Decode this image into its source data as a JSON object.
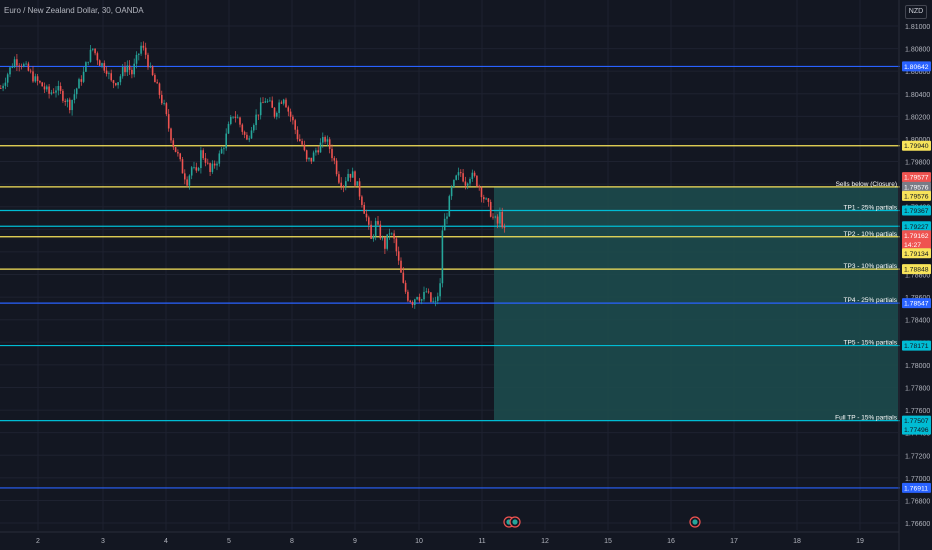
{
  "header": {
    "title": "Euro / New Zealand Dollar, 30, OANDA",
    "currency": "NZD"
  },
  "colors": {
    "background": "#131722",
    "up": "#26a69a",
    "down": "#ef5350",
    "blue_line": "#2962ff",
    "yellow_line": "#f7e35a",
    "cyan_line": "#00bcd4",
    "zone_fill": "#1d4a4d",
    "grid": "#1e2230"
  },
  "chart_data": {
    "type": "candlestick",
    "title": "Euro / New Zealand Dollar, 30, OANDA",
    "ylim": [
      1.7645,
      1.8123
    ],
    "y_ticks": [
      1.81,
      1.808,
      1.806,
      1.804,
      1.802,
      1.8,
      1.798,
      1.796,
      1.794,
      1.792,
      1.79,
      1.788,
      1.786,
      1.784,
      1.782,
      1.78,
      1.778,
      1.776,
      1.774,
      1.772,
      1.77,
      1.768,
      1.766
    ],
    "x_ticks": [
      "2",
      "3",
      "4",
      "5",
      "8",
      "9",
      "10",
      "11",
      "12",
      "15",
      "16",
      "17",
      "18",
      "19"
    ],
    "price_path": [
      [
        0,
        1.8045
      ],
      [
        3,
        1.8058
      ],
      [
        6,
        1.807
      ],
      [
        9,
        1.8067
      ],
      [
        12,
        1.806
      ],
      [
        15,
        1.8052
      ],
      [
        18,
        1.8047
      ],
      [
        21,
        1.804
      ],
      [
        24,
        1.8045
      ],
      [
        27,
        1.8038
      ],
      [
        30,
        1.803
      ],
      [
        33,
        1.8045
      ],
      [
        36,
        1.8058
      ],
      [
        38,
        1.8072
      ],
      [
        40,
        1.808
      ],
      [
        43,
        1.8068
      ],
      [
        46,
        1.8062
      ],
      [
        48,
        1.805
      ],
      [
        51,
        1.8052
      ],
      [
        53,
        1.806
      ],
      [
        55,
        1.8065
      ],
      [
        57,
        1.8058
      ],
      [
        59,
        1.807
      ],
      [
        61,
        1.8082
      ],
      [
        63,
        1.8075
      ],
      [
        65,
        1.806
      ],
      [
        67,
        1.805
      ],
      [
        69,
        1.804
      ],
      [
        71,
        1.8028
      ],
      [
        73,
        1.801
      ],
      [
        75,
        1.7995
      ],
      [
        77,
        1.7985
      ],
      [
        79,
        1.7972
      ],
      [
        81,
        1.7963
      ],
      [
        83,
        1.7975
      ],
      [
        85,
        1.7968
      ],
      [
        87,
        1.7988
      ],
      [
        89,
        1.7982
      ],
      [
        91,
        1.797
      ],
      [
        93,
        1.7978
      ],
      [
        95,
        1.7985
      ],
      [
        97,
        1.7995
      ],
      [
        99,
        1.801
      ],
      [
        101,
        1.8022
      ],
      [
        103,
        1.8018
      ],
      [
        105,
        1.8008
      ],
      [
        107,
        1.7998
      ],
      [
        109,
        1.8012
      ],
      [
        111,
        1.802
      ],
      [
        113,
        1.8028
      ],
      [
        115,
        1.8035
      ],
      [
        117,
        1.803
      ],
      [
        119,
        1.8022
      ],
      [
        121,
        1.8032
      ],
      [
        123,
        1.8038
      ],
      [
        125,
        1.8025
      ],
      [
        127,
        1.8015
      ],
      [
        129,
        1.8002
      ],
      [
        131,
        1.7995
      ],
      [
        133,
        1.798
      ],
      [
        135,
        1.7982
      ],
      [
        137,
        1.799
      ],
      [
        139,
        1.7995
      ],
      [
        141,
        1.8
      ],
      [
        143,
        1.7992
      ],
      [
        145,
        1.798
      ],
      [
        147,
        1.7965
      ],
      [
        149,
        1.796
      ],
      [
        151,
        1.797
      ],
      [
        153,
        1.7968
      ],
      [
        155,
        1.7958
      ],
      [
        157,
        1.7945
      ],
      [
        159,
        1.793
      ],
      [
        161,
        1.791
      ],
      [
        163,
        1.7925
      ],
      [
        165,
        1.7915
      ],
      [
        167,
        1.7905
      ],
      [
        169,
        1.7918
      ],
      [
        171,
        1.791
      ],
      [
        173,
        1.789
      ],
      [
        175,
        1.787
      ],
      [
        177,
        1.786
      ],
      [
        179,
        1.7856
      ],
      [
        181,
        1.7863
      ],
      [
        183,
        1.7858
      ],
      [
        185,
        1.7865
      ],
      [
        187,
        1.7856
      ],
      [
        189,
        1.7854
      ],
      [
        191,
        1.787
      ],
      [
        192,
        1.792
      ],
      [
        194,
        1.7935
      ],
      [
        196,
        1.7955
      ],
      [
        198,
        1.7965
      ],
      [
        200,
        1.797
      ],
      [
        202,
        1.7962
      ],
      [
        204,
        1.7968
      ],
      [
        206,
        1.7965
      ],
      [
        208,
        1.7958
      ],
      [
        210,
        1.7948
      ],
      [
        212,
        1.794
      ],
      [
        214,
        1.793
      ],
      [
        216,
        1.7925
      ],
      [
        217,
        1.7933
      ],
      [
        219,
        1.7918
      ],
      [
        220,
        1.7916
      ]
    ],
    "levels": [
      {
        "price": 1.80642,
        "label": "",
        "color": "blue"
      },
      {
        "price": 1.7994,
        "label": "",
        "color": "yellow"
      },
      {
        "price": 1.79576,
        "label": "Sells below (Closure)",
        "color": "yellow"
      },
      {
        "price": 1.79367,
        "label": "TP1 - 25% partials",
        "color": "cyan"
      },
      {
        "price": 1.79227,
        "label": "",
        "color": "cyan"
      },
      {
        "price": 1.79134,
        "label": "TP2 - 10% partials",
        "color": "yellow"
      },
      {
        "price": 1.78848,
        "label": "TP3 - 10% partials",
        "color": "yellow"
      },
      {
        "price": 1.78547,
        "label": "TP4 - 25% partials",
        "color": "blue"
      },
      {
        "price": 1.78171,
        "label": "TP5 - 15% partials",
        "color": "cyan"
      },
      {
        "price": 1.77507,
        "label": "Full TP - 15% partials",
        "color": "cyan"
      },
      {
        "price": 1.76911,
        "label": "",
        "color": "blue"
      }
    ],
    "price_labels": [
      {
        "text": "1.80642",
        "bg": "#2962ff",
        "fg": "#ffffff",
        "price": 1.80642
      },
      {
        "text": "1.79940",
        "bg": "#f7e35a",
        "fg": "#131722",
        "price": 1.7994
      },
      {
        "text": "1.79577",
        "bg": "#ef5350",
        "fg": "#ffffff",
        "price": 1.79662
      },
      {
        "text": "1.79576",
        "bg": "#787b86",
        "fg": "#ffffff",
        "price": 1.79576
      },
      {
        "text": "1.79576",
        "bg": "#f7e35a",
        "fg": "#131722",
        "price": 1.79576
      },
      {
        "text": "1.79367",
        "bg": "#00bcd4",
        "fg": "#131722",
        "price": 1.79367
      },
      {
        "text": "1.79227",
        "bg": "#00bcd4",
        "fg": "#131722",
        "price": 1.79227
      },
      {
        "text": "1.79162",
        "bg": "#ef5350",
        "fg": "#ffffff",
        "price": 1.79162
      },
      {
        "text": "14:27",
        "bg": "#ef5350",
        "fg": "#ffffff",
        "price": 1.79162
      },
      {
        "text": "1.79134",
        "bg": "#f7e35a",
        "fg": "#131722",
        "price": 1.79134
      },
      {
        "text": "1.78848",
        "bg": "#f7e35a",
        "fg": "#131722",
        "price": 1.78848
      },
      {
        "text": "1.78547",
        "bg": "#2962ff",
        "fg": "#ffffff",
        "price": 1.78547
      },
      {
        "text": "1.78171",
        "bg": "#00bcd4",
        "fg": "#131722",
        "price": 1.78171
      },
      {
        "text": "1.77507",
        "bg": "#00bcd4",
        "fg": "#131722",
        "price": 1.77507
      },
      {
        "text": "1.77496",
        "bg": "#00bcd4",
        "fg": "#131722",
        "price": 1.77496
      },
      {
        "text": "1.76911",
        "bg": "#2962ff",
        "fg": "#ffffff",
        "price": 1.76911
      }
    ],
    "trade_zone": {
      "top": 1.79576,
      "bottom": 1.77507,
      "color": "teal"
    },
    "event_markers": [
      "event-icon",
      "event-icon",
      "event-icon"
    ]
  }
}
